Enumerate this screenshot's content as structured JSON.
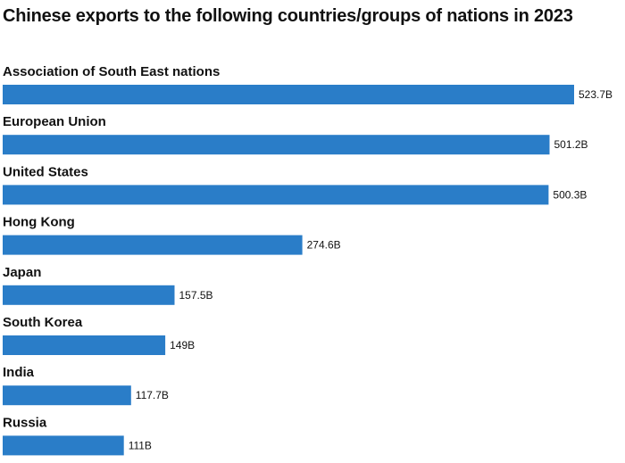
{
  "chart_data": {
    "type": "bar",
    "orientation": "horizontal",
    "title": "Chinese exports to the following countries/groups of nations in 2023",
    "categories": [
      "Association of South East nations",
      "European Union",
      "United States",
      "Hong Kong",
      "Japan",
      "South Korea",
      "India",
      "Russia"
    ],
    "values": [
      523.7,
      501.2,
      500.3,
      274.6,
      157.5,
      149,
      117.7,
      111
    ],
    "value_labels": [
      "523.7B",
      "501.2B",
      "500.3B",
      "274.6B",
      "157.5B",
      "149B",
      "117.7B",
      "111B"
    ],
    "xlim": [
      0,
      523.7
    ],
    "grid": false,
    "bar_color": "#2a7dc8"
  }
}
